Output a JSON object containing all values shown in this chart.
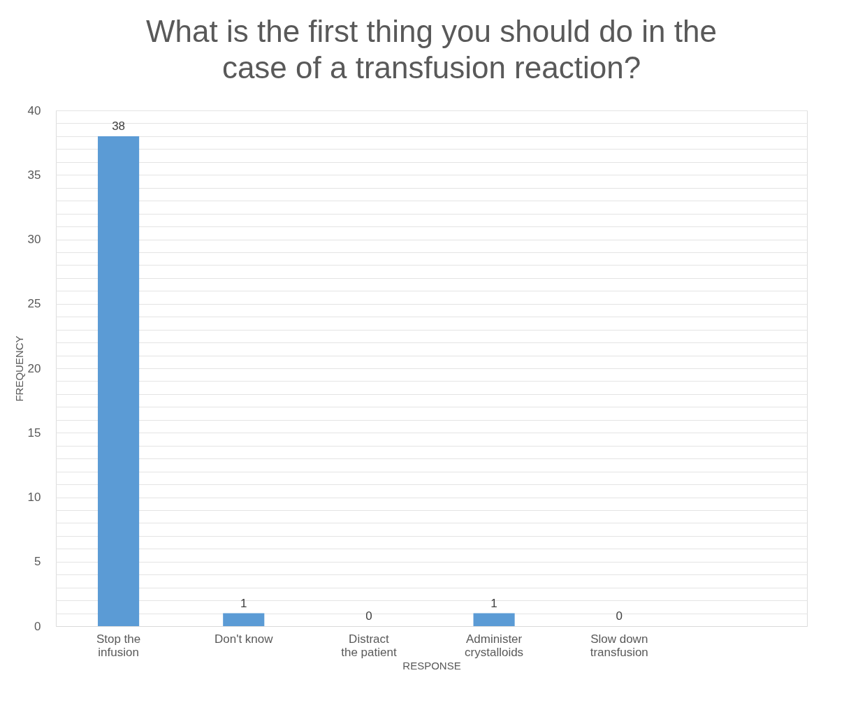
{
  "chart_data": {
    "type": "bar",
    "title": [
      "What is the first thing you should do in the",
      "case of a transfusion reaction?"
    ],
    "xlabel": "RESPONSE",
    "ylabel": "FREQUENCY",
    "categories": [
      "Stop the infusion",
      "Don't know",
      "Distract the patient",
      "Administer crystalloids",
      "Slow down transfusion",
      null
    ],
    "values": [
      38,
      1,
      0,
      1,
      0,
      null
    ],
    "color": "#5b9bd5",
    "ylim": [
      0,
      40
    ],
    "yticks": [
      0,
      {
        "value": 1,
        "label": null
      },
      {
        "value": 2,
        "label": null
      },
      {
        "value": 3,
        "label": null
      },
      {
        "value": 4,
        "label": null
      },
      5,
      {
        "value": 6,
        "label": null
      },
      {
        "value": 7,
        "label": null
      },
      {
        "value": 8,
        "label": null
      },
      {
        "value": 9,
        "label": null
      },
      10,
      {
        "value": 11,
        "label": null
      },
      {
        "value": 12,
        "label": null
      },
      {
        "value": 13,
        "label": null
      },
      {
        "value": 14,
        "label": null
      },
      15,
      {
        "value": 16,
        "label": null
      },
      {
        "value": 17,
        "label": null
      },
      {
        "value": 18,
        "label": null
      },
      {
        "value": 19,
        "label": null
      },
      20,
      {
        "value": 21,
        "label": null
      },
      {
        "value": 22,
        "label": null
      },
      {
        "value": 23,
        "label": null
      },
      {
        "value": 24,
        "label": null
      },
      25,
      {
        "value": 26,
        "label": null
      },
      {
        "value": 27,
        "label": null
      },
      {
        "value": 28,
        "label": null
      },
      {
        "value": 29,
        "label": null
      },
      30,
      {
        "value": 31,
        "label": null
      },
      {
        "value": 32,
        "label": null
      },
      {
        "value": 33,
        "label": null
      },
      {
        "value": 34,
        "label": null
      },
      35,
      {
        "value": 36,
        "label": null
      },
      {
        "value": 37,
        "label": null
      },
      {
        "value": 38,
        "label": null
      },
      {
        "value": 39,
        "label": null
      },
      40
    ],
    "grid": "y",
    "data_labels": true
  }
}
